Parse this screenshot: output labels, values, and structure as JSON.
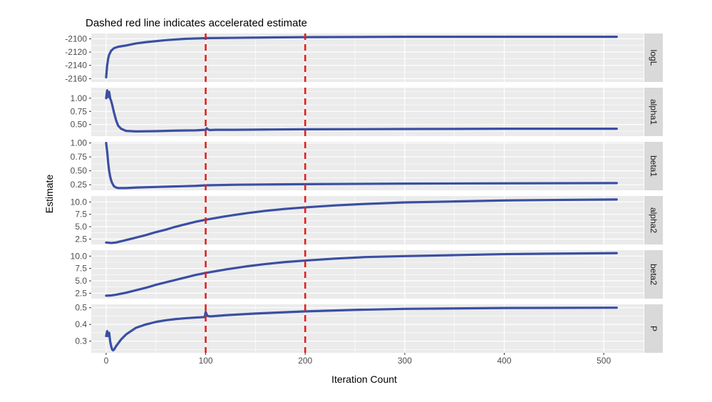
{
  "chart_data": {
    "type": "line",
    "title": "Dashed red line indicates accelerated estimate",
    "xlabel": "Iteration Count",
    "ylabel": "Estimate",
    "xlim": [
      -15,
      540
    ],
    "x_ticks": [
      0,
      100,
      200,
      300,
      400,
      500
    ],
    "vlines": [
      100,
      200
    ],
    "colors": {
      "line": "#3a4fa3",
      "vline": "#e02222",
      "panel_bg": "#ebebeb",
      "grid": "#ffffff",
      "strip_bg": "#d9d9d9"
    },
    "grid": true,
    "panels": [
      {
        "label": "logL",
        "ylim": [
          -2165,
          -2092
        ],
        "y_ticks": [
          -2160,
          -2140,
          -2120,
          -2100
        ],
        "y_tick_labels": [
          "-2160",
          "-2140",
          "-2120",
          "-2100"
        ],
        "x": [
          0,
          1,
          2,
          3,
          5,
          8,
          12,
          20,
          30,
          40,
          60,
          80,
          100,
          130,
          160,
          200,
          300,
          400,
          513
        ],
        "y": [
          -2158,
          -2140,
          -2130,
          -2124,
          -2118,
          -2114,
          -2112,
          -2110,
          -2107,
          -2105,
          -2102,
          -2100,
          -2099,
          -2098.5,
          -2098,
          -2097.5,
          -2097,
          -2097,
          -2097
        ]
      },
      {
        "label": "alpha1",
        "ylim": [
          0.28,
          1.2
        ],
        "y_ticks": [
          0.5,
          0.75,
          1.0
        ],
        "y_tick_labels": [
          "0.50",
          "0.75",
          "1.00"
        ],
        "x": [
          0,
          1,
          2,
          3,
          4,
          5,
          6,
          8,
          10,
          12,
          15,
          20,
          30,
          50,
          70,
          90,
          100,
          101,
          102,
          104,
          110,
          130,
          160,
          200,
          300,
          400,
          513
        ],
        "y": [
          1.0,
          1.15,
          1.02,
          1.12,
          1.0,
          0.95,
          0.88,
          0.72,
          0.58,
          0.48,
          0.42,
          0.38,
          0.37,
          0.375,
          0.385,
          0.39,
          0.4,
          0.43,
          0.41,
          0.395,
          0.4,
          0.4,
          0.405,
          0.41,
          0.415,
          0.42,
          0.42
        ]
      },
      {
        "label": "beta1",
        "ylim": [
          0.15,
          1.02
        ],
        "y_ticks": [
          0.25,
          0.5,
          0.75,
          1.0
        ],
        "y_tick_labels": [
          "0.25",
          "0.50",
          "0.75",
          "1.00"
        ],
        "x": [
          0,
          1,
          2,
          3,
          4,
          5,
          6,
          8,
          10,
          12,
          15,
          20,
          30,
          50,
          70,
          90,
          100,
          130,
          160,
          200,
          300,
          400,
          513
        ],
        "y": [
          1.0,
          0.85,
          0.65,
          0.5,
          0.4,
          0.33,
          0.28,
          0.22,
          0.2,
          0.19,
          0.19,
          0.19,
          0.2,
          0.21,
          0.22,
          0.23,
          0.24,
          0.25,
          0.255,
          0.26,
          0.27,
          0.275,
          0.28
        ]
      },
      {
        "label": "alpha2",
        "ylim": [
          1.4,
          11.2
        ],
        "y_ticks": [
          2.5,
          5.0,
          7.5,
          10.0
        ],
        "y_tick_labels": [
          "2.5",
          "5.0",
          "7.5",
          "10.0"
        ],
        "x": [
          0,
          5,
          10,
          20,
          30,
          40,
          50,
          60,
          70,
          80,
          90,
          100,
          120,
          140,
          160,
          180,
          200,
          230,
          260,
          300,
          350,
          400,
          450,
          513
        ],
        "y": [
          1.8,
          1.7,
          1.8,
          2.3,
          2.8,
          3.3,
          3.9,
          4.4,
          5.0,
          5.5,
          6.0,
          6.4,
          7.1,
          7.7,
          8.2,
          8.6,
          8.9,
          9.3,
          9.6,
          9.9,
          10.1,
          10.3,
          10.4,
          10.5
        ]
      },
      {
        "label": "beta2",
        "ylim": [
          1.4,
          11.2
        ],
        "y_ticks": [
          2.5,
          5.0,
          7.5,
          10.0
        ],
        "y_tick_labels": [
          "2.5",
          "5.0",
          "7.5",
          "10.0"
        ],
        "x": [
          0,
          5,
          10,
          20,
          30,
          40,
          50,
          60,
          70,
          80,
          90,
          100,
          120,
          140,
          160,
          180,
          200,
          230,
          260,
          300,
          350,
          400,
          450,
          513
        ],
        "y": [
          2.0,
          2.05,
          2.2,
          2.6,
          3.1,
          3.6,
          4.2,
          4.7,
          5.2,
          5.7,
          6.2,
          6.6,
          7.3,
          7.9,
          8.4,
          8.8,
          9.1,
          9.5,
          9.8,
          10.0,
          10.2,
          10.4,
          10.5,
          10.6
        ]
      },
      {
        "label": "P",
        "ylim": [
          0.23,
          0.52
        ],
        "y_ticks": [
          0.3,
          0.4,
          0.5
        ],
        "y_tick_labels": [
          "0.3",
          "0.4",
          "0.5"
        ],
        "x": [
          0,
          1,
          2,
          3,
          4,
          5,
          6,
          7,
          8,
          10,
          15,
          20,
          30,
          40,
          50,
          60,
          70,
          80,
          90,
          99,
          100,
          101,
          102,
          105,
          120,
          150,
          200,
          250,
          300,
          400,
          513
        ],
        "y": [
          0.33,
          0.36,
          0.33,
          0.35,
          0.3,
          0.27,
          0.25,
          0.245,
          0.25,
          0.27,
          0.31,
          0.34,
          0.38,
          0.4,
          0.415,
          0.425,
          0.432,
          0.437,
          0.441,
          0.444,
          0.475,
          0.46,
          0.45,
          0.448,
          0.455,
          0.465,
          0.478,
          0.487,
          0.493,
          0.498,
          0.5
        ]
      }
    ]
  }
}
